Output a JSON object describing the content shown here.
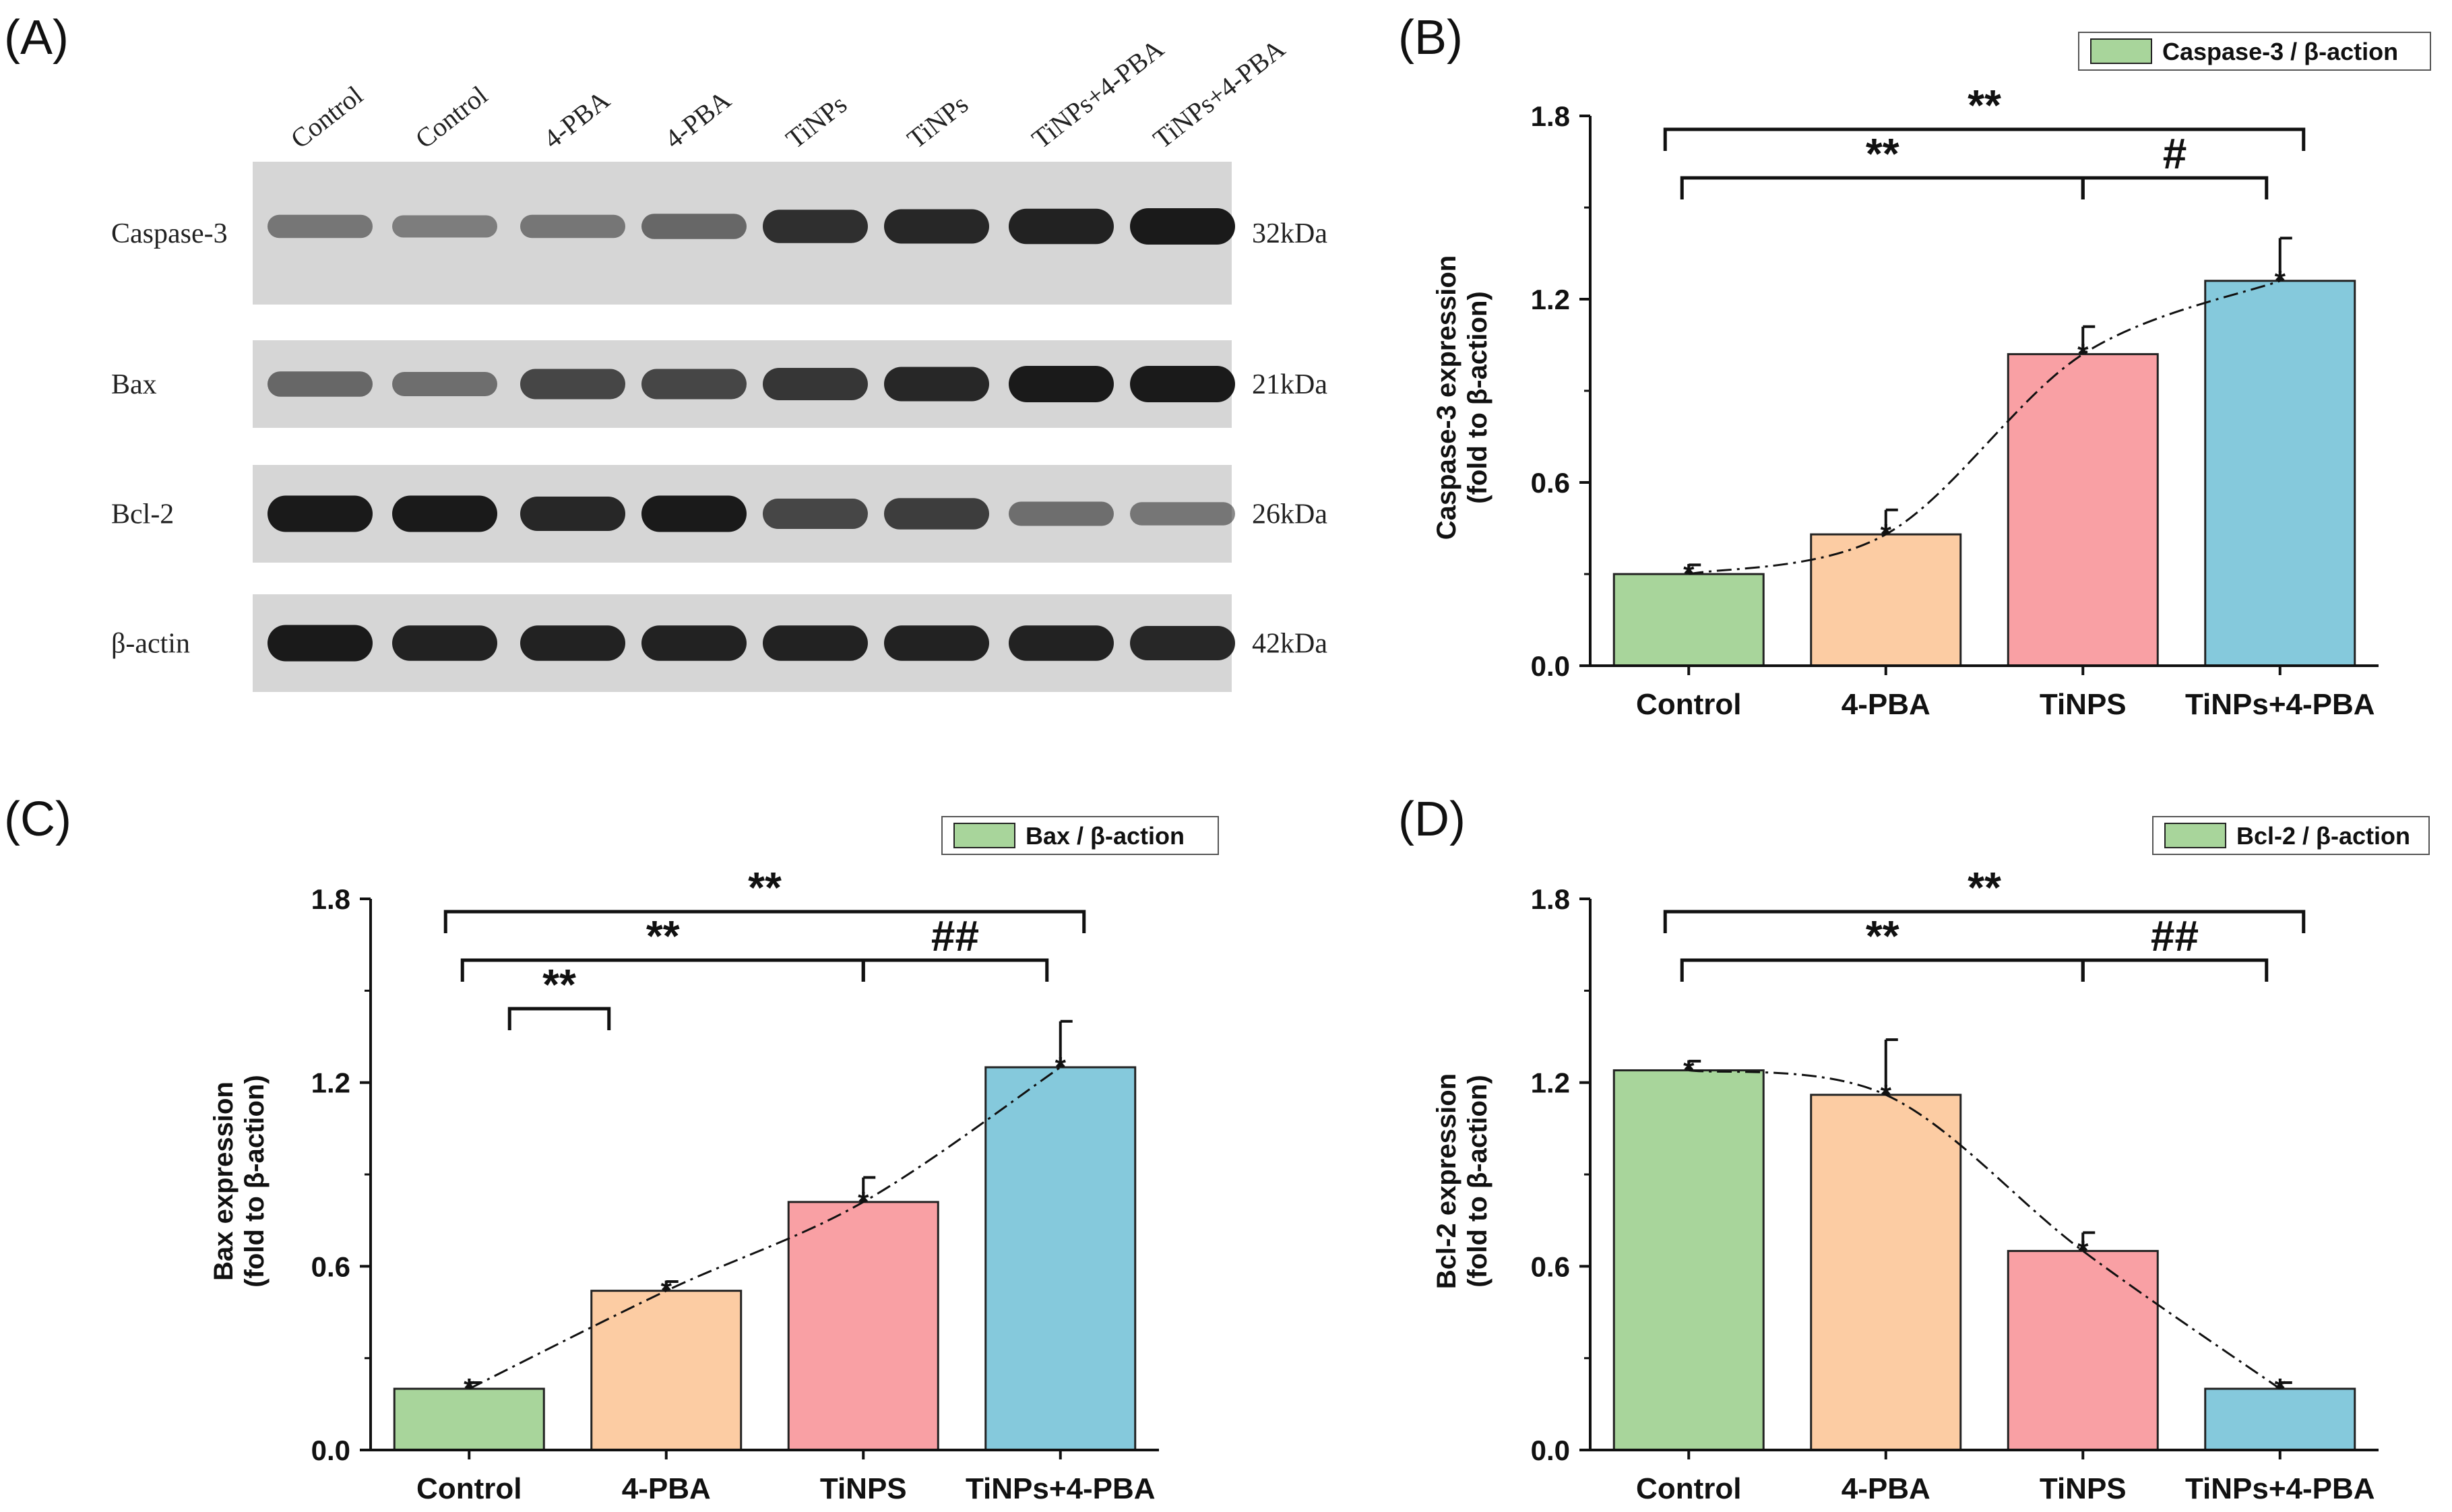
{
  "blot": {
    "panel_label": "(A)",
    "lanes": [
      "Control",
      "Control",
      "4-PBA",
      "4-PBA",
      "TiNPs",
      "TiNPs",
      "TiNPs+4-PBA",
      "TiNPs+4-PBA"
    ],
    "rows": [
      {
        "protein": "Caspase-3",
        "size": "32kDa",
        "intensity": [
          0.35,
          0.3,
          0.35,
          0.45,
          0.85,
          0.9,
          0.95,
          1.0
        ]
      },
      {
        "protein": "Bax",
        "size": "21kDa",
        "intensity": [
          0.45,
          0.4,
          0.7,
          0.7,
          0.8,
          0.9,
          1.0,
          1.0
        ]
      },
      {
        "protein": "Bcl-2",
        "size": "26kDa",
        "intensity": [
          1.0,
          1.0,
          0.9,
          1.0,
          0.7,
          0.75,
          0.4,
          0.35
        ]
      },
      {
        "protein": "β-actin",
        "size": "42kDa",
        "intensity": [
          1.0,
          0.95,
          0.95,
          0.95,
          0.95,
          0.95,
          0.95,
          0.9
        ]
      }
    ]
  },
  "chart_data": [
    {
      "panel_label": "(B)",
      "type": "bar",
      "categories": [
        "Control",
        "4-PBA",
        "TiNPS",
        "TiNPs+4-PBA"
      ],
      "values": [
        0.3,
        0.43,
        1.02,
        1.26
      ],
      "errors": [
        0.03,
        0.08,
        0.09,
        0.14
      ],
      "legend": "Caspase-3 / β-action",
      "ylabel_line1": "Caspase-3 expression",
      "ylabel_line2": "(fold to β-action)",
      "ylim": [
        0,
        1.8
      ],
      "yticks": [
        "0.0",
        "0.6",
        "1.2",
        "1.8"
      ],
      "trend_line": true,
      "significance": [
        {
          "text": "**",
          "type": "pair",
          "from": 0,
          "to": 3,
          "level": 1
        },
        {
          "text": "**",
          "type": "bracket",
          "from": 0,
          "to": 2,
          "level": 2
        },
        {
          "text": "#",
          "type": "bracket",
          "from": 2,
          "to": 3,
          "level": 2
        }
      ]
    },
    {
      "panel_label": "(C)",
      "type": "bar",
      "categories": [
        "Control",
        "4-PBA",
        "TiNPS",
        "TiNPs+4-PBA"
      ],
      "values": [
        0.2,
        0.52,
        0.81,
        1.25
      ],
      "errors": [
        0.02,
        0.03,
        0.08,
        0.15
      ],
      "legend": "Bax / β-action",
      "ylabel_line1": "Bax expression",
      "ylabel_line2": "(fold to β-action)",
      "ylim": [
        0,
        1.8
      ],
      "yticks": [
        "0.0",
        "0.6",
        "1.2",
        "1.8"
      ],
      "trend_line": true,
      "significance": [
        {
          "text": "**",
          "type": "pair",
          "from": 0,
          "to": 3,
          "level": 1
        },
        {
          "text": "**",
          "type": "bracket",
          "from": 0,
          "to": 2,
          "level": 2
        },
        {
          "text": "##",
          "type": "bracket",
          "from": 2,
          "to": 3,
          "level": 2
        },
        {
          "text": "**",
          "type": "pair",
          "from": 0,
          "to": 1,
          "level": 3
        }
      ]
    },
    {
      "panel_label": "(D)",
      "type": "bar",
      "categories": [
        "Control",
        "4-PBA",
        "TiNPS",
        "TiNPs+4-PBA"
      ],
      "values": [
        1.24,
        1.16,
        0.65,
        0.2
      ],
      "errors": [
        0.03,
        0.18,
        0.06,
        0.02
      ],
      "legend": "Bcl-2 / β-action",
      "ylabel_line1": "Bcl-2 expression",
      "ylabel_line2": "(fold to β-action)",
      "ylim": [
        0,
        1.8
      ],
      "yticks": [
        "0.0",
        "0.6",
        "1.2",
        "1.8"
      ],
      "trend_line": true,
      "significance": [
        {
          "text": "**",
          "type": "pair",
          "from": 0,
          "to": 3,
          "level": 1
        },
        {
          "text": "**",
          "type": "bracket",
          "from": 0,
          "to": 2,
          "level": 2
        },
        {
          "text": "##",
          "type": "bracket",
          "from": 2,
          "to": 3,
          "level": 2
        }
      ]
    }
  ],
  "colors": {
    "bars": [
      "#a8d59b",
      "#fccca3",
      "#f9a0a4",
      "#85c9dc"
    ],
    "blot_bg": "#d6d6d6",
    "band": "#1a1a1a"
  }
}
